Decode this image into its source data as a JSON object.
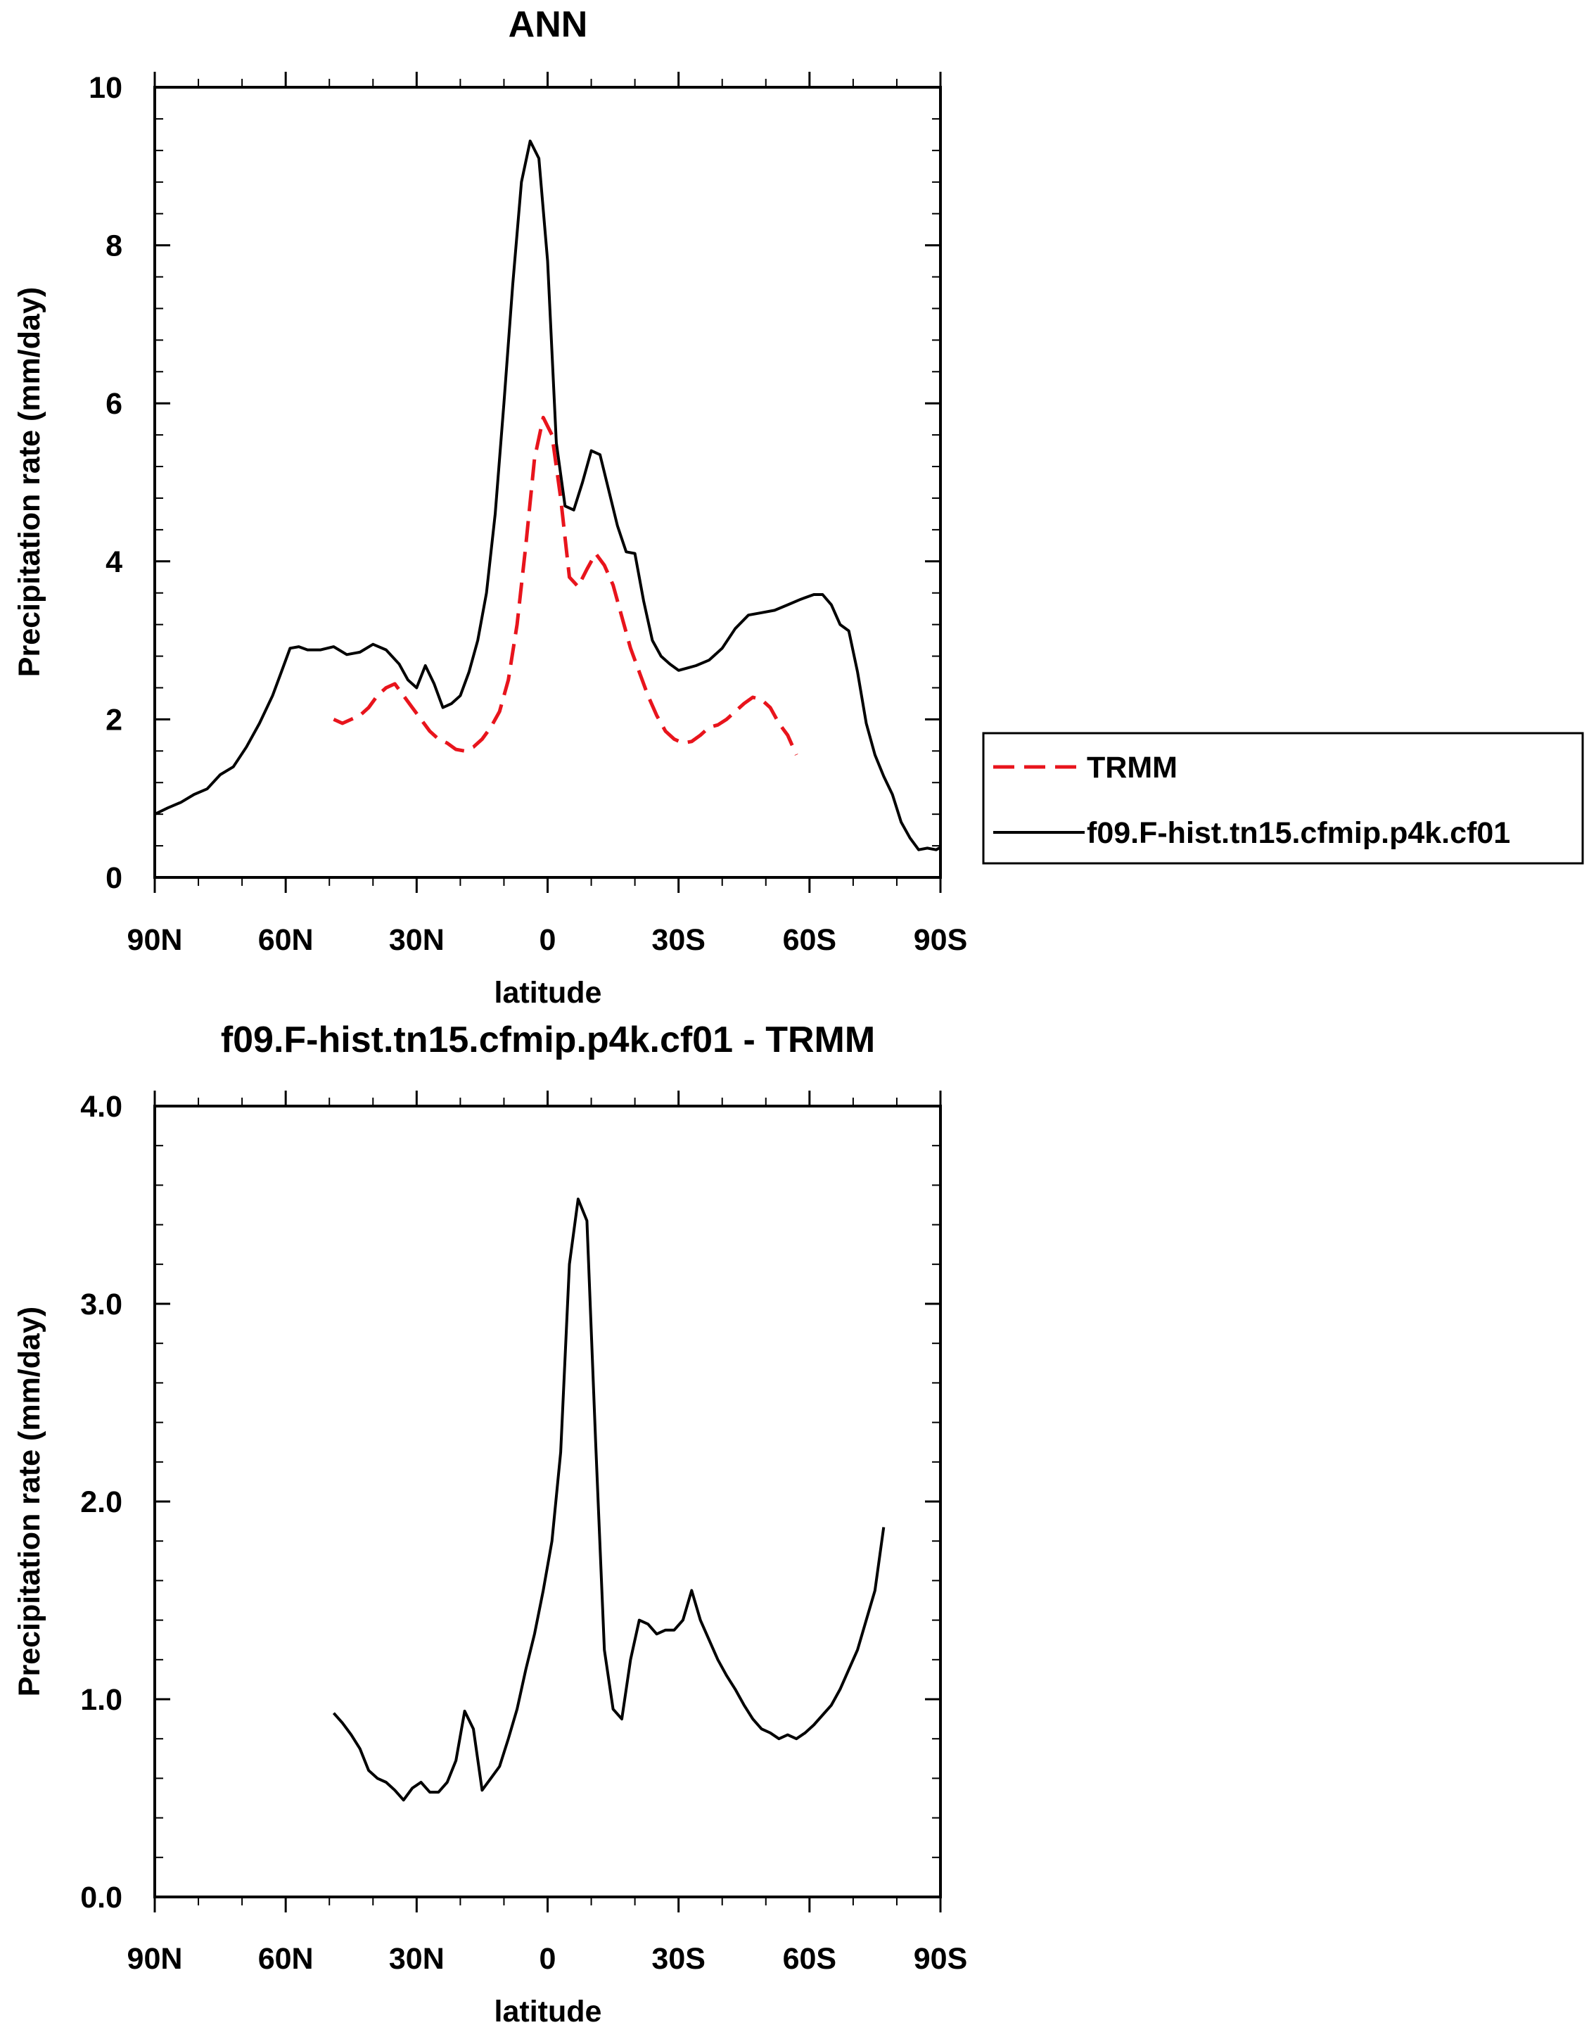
{
  "chart_data": [
    {
      "type": "line",
      "title": "ANN",
      "xlabel": "latitude",
      "ylabel": "Precipitation rate (mm/day)",
      "xlim": [
        90,
        -90
      ],
      "ylim": [
        0,
        10
      ],
      "x_ticks": [
        90,
        60,
        30,
        0,
        -30,
        -60,
        -90
      ],
      "x_tick_labels": [
        "90N",
        "60N",
        "30N",
        "0",
        "30S",
        "60S",
        "90S"
      ],
      "y_ticks": [
        0,
        2,
        4,
        6,
        8,
        10
      ],
      "y_tick_labels": [
        "0",
        "2",
        "4",
        "6",
        "8",
        "10"
      ],
      "legend_placement": "right",
      "series": [
        {
          "name": "TRMM",
          "color": "#e8141c",
          "dash": "dashed",
          "points": [
            [
              49,
              2.0
            ],
            [
              47,
              1.95
            ],
            [
              45,
              2.0
            ],
            [
              43,
              2.05
            ],
            [
              41,
              2.15
            ],
            [
              39,
              2.3
            ],
            [
              37,
              2.4
            ],
            [
              35,
              2.45
            ],
            [
              33,
              2.3
            ],
            [
              31,
              2.15
            ],
            [
              29,
              2.0
            ],
            [
              27,
              1.85
            ],
            [
              25,
              1.75
            ],
            [
              23,
              1.7
            ],
            [
              21,
              1.62
            ],
            [
              19,
              1.6
            ],
            [
              17,
              1.65
            ],
            [
              15,
              1.75
            ],
            [
              13,
              1.9
            ],
            [
              11,
              2.1
            ],
            [
              9,
              2.5
            ],
            [
              7,
              3.2
            ],
            [
              5,
              4.2
            ],
            [
              3,
              5.3
            ],
            [
              1,
              5.82
            ],
            [
              -1,
              5.6
            ],
            [
              -3,
              4.8
            ],
            [
              -5,
              3.8
            ],
            [
              -7,
              3.68
            ],
            [
              -9,
              3.9
            ],
            [
              -11,
              4.1
            ],
            [
              -13,
              3.95
            ],
            [
              -15,
              3.7
            ],
            [
              -17,
              3.3
            ],
            [
              -19,
              2.9
            ],
            [
              -21,
              2.6
            ],
            [
              -23,
              2.3
            ],
            [
              -25,
              2.05
            ],
            [
              -27,
              1.85
            ],
            [
              -29,
              1.75
            ],
            [
              -31,
              1.7
            ],
            [
              -33,
              1.72
            ],
            [
              -35,
              1.8
            ],
            [
              -37,
              1.9
            ],
            [
              -39,
              1.93
            ],
            [
              -41,
              2.0
            ],
            [
              -43,
              2.1
            ],
            [
              -45,
              2.2
            ],
            [
              -47,
              2.28
            ],
            [
              -49,
              2.25
            ],
            [
              -51,
              2.15
            ],
            [
              -53,
              1.95
            ],
            [
              -55,
              1.8
            ],
            [
              -57,
              1.55
            ]
          ]
        },
        {
          "name": "f09.F-hist.tn15.cfmip.p4k.cf01",
          "color": "#000000",
          "dash": "solid",
          "points": [
            [
              90,
              0.8
            ],
            [
              87,
              0.88
            ],
            [
              84,
              0.95
            ],
            [
              81,
              1.05
            ],
            [
              78,
              1.12
            ],
            [
              75,
              1.3
            ],
            [
              72,
              1.4
            ],
            [
              69,
              1.65
            ],
            [
              66,
              1.95
            ],
            [
              63,
              2.3
            ],
            [
              61,
              2.6
            ],
            [
              59,
              2.9
            ],
            [
              57,
              2.92
            ],
            [
              55,
              2.88
            ],
            [
              52,
              2.88
            ],
            [
              49,
              2.92
            ],
            [
              46,
              2.82
            ],
            [
              43,
              2.85
            ],
            [
              40,
              2.95
            ],
            [
              37,
              2.88
            ],
            [
              34,
              2.7
            ],
            [
              32,
              2.5
            ],
            [
              30,
              2.4
            ],
            [
              28,
              2.68
            ],
            [
              26,
              2.45
            ],
            [
              24,
              2.15
            ],
            [
              22,
              2.2
            ],
            [
              20,
              2.3
            ],
            [
              18,
              2.6
            ],
            [
              16,
              3.0
            ],
            [
              14,
              3.6
            ],
            [
              12,
              4.6
            ],
            [
              10,
              6.0
            ],
            [
              8,
              7.5
            ],
            [
              6,
              8.8
            ],
            [
              4,
              9.32
            ],
            [
              2,
              9.1
            ],
            [
              0,
              7.8
            ],
            [
              -2,
              5.5
            ],
            [
              -4,
              4.7
            ],
            [
              -6,
              4.65
            ],
            [
              -8,
              5.0
            ],
            [
              -10,
              5.4
            ],
            [
              -12,
              5.35
            ],
            [
              -14,
              4.9
            ],
            [
              -16,
              4.45
            ],
            [
              -18,
              4.12
            ],
            [
              -20,
              4.1
            ],
            [
              -22,
              3.5
            ],
            [
              -24,
              3.0
            ],
            [
              -26,
              2.8
            ],
            [
              -28,
              2.7
            ],
            [
              -30,
              2.62
            ],
            [
              -32,
              2.65
            ],
            [
              -34,
              2.68
            ],
            [
              -37,
              2.75
            ],
            [
              -40,
              2.9
            ],
            [
              -43,
              3.15
            ],
            [
              -46,
              3.32
            ],
            [
              -49,
              3.35
            ],
            [
              -52,
              3.38
            ],
            [
              -55,
              3.45
            ],
            [
              -58,
              3.52
            ],
            [
              -61,
              3.58
            ],
            [
              -63,
              3.58
            ],
            [
              -65,
              3.45
            ],
            [
              -67,
              3.2
            ],
            [
              -69,
              3.12
            ],
            [
              -71,
              2.6
            ],
            [
              -73,
              1.95
            ],
            [
              -75,
              1.55
            ],
            [
              -77,
              1.28
            ],
            [
              -79,
              1.05
            ],
            [
              -81,
              0.7
            ],
            [
              -83,
              0.5
            ],
            [
              -85,
              0.35
            ],
            [
              -87,
              0.37
            ],
            [
              -89,
              0.35
            ],
            [
              -90,
              0.38
            ]
          ]
        }
      ]
    },
    {
      "type": "line",
      "title": "f09.F-hist.tn15.cfmip.p4k.cf01 - TRMM",
      "xlabel": "latitude",
      "ylabel": "Precipitation rate (mm/day)",
      "xlim": [
        90,
        -90
      ],
      "ylim": [
        0,
        4
      ],
      "x_ticks": [
        90,
        60,
        30,
        0,
        -30,
        -60,
        -90
      ],
      "x_tick_labels": [
        "90N",
        "60N",
        "30N",
        "0",
        "30S",
        "60S",
        "90S"
      ],
      "y_ticks": [
        0,
        1,
        2,
        3,
        4
      ],
      "y_tick_labels": [
        "0.0",
        "1.0",
        "2.0",
        "3.0",
        "4.0"
      ],
      "series": [
        {
          "color": "#000000",
          "dash": "solid",
          "points": [
            [
              49,
              0.93
            ],
            [
              47,
              0.88
            ],
            [
              45,
              0.82
            ],
            [
              43,
              0.75
            ],
            [
              41,
              0.64
            ],
            [
              39,
              0.6
            ],
            [
              37,
              0.58
            ],
            [
              35,
              0.54
            ],
            [
              33,
              0.49
            ],
            [
              31,
              0.55
            ],
            [
              29,
              0.58
            ],
            [
              27,
              0.53
            ],
            [
              25,
              0.53
            ],
            [
              23,
              0.58
            ],
            [
              21,
              0.69
            ],
            [
              19,
              0.94
            ],
            [
              17,
              0.85
            ],
            [
              15,
              0.54
            ],
            [
              13,
              0.6
            ],
            [
              11,
              0.66
            ],
            [
              9,
              0.8
            ],
            [
              7,
              0.95
            ],
            [
              5,
              1.15
            ],
            [
              3,
              1.33
            ],
            [
              1,
              1.55
            ],
            [
              -1,
              1.8
            ],
            [
              -3,
              2.25
            ],
            [
              -5,
              3.2
            ],
            [
              -7,
              3.53
            ],
            [
              -9,
              3.42
            ],
            [
              -11,
              2.3
            ],
            [
              -13,
              1.25
            ],
            [
              -15,
              0.95
            ],
            [
              -17,
              0.9
            ],
            [
              -19,
              1.2
            ],
            [
              -21,
              1.4
            ],
            [
              -23,
              1.38
            ],
            [
              -25,
              1.33
            ],
            [
              -27,
              1.35
            ],
            [
              -29,
              1.35
            ],
            [
              -31,
              1.4
            ],
            [
              -33,
              1.55
            ],
            [
              -35,
              1.4
            ],
            [
              -37,
              1.3
            ],
            [
              -39,
              1.2
            ],
            [
              -41,
              1.12
            ],
            [
              -43,
              1.05
            ],
            [
              -45,
              0.97
            ],
            [
              -47,
              0.9
            ],
            [
              -49,
              0.85
            ],
            [
              -51,
              0.83
            ],
            [
              -53,
              0.8
            ],
            [
              -55,
              0.82
            ],
            [
              -57,
              0.8
            ],
            [
              -59,
              0.83
            ],
            [
              -61,
              0.87
            ],
            [
              -63,
              0.92
            ],
            [
              -65,
              0.97
            ],
            [
              -67,
              1.05
            ],
            [
              -69,
              1.15
            ],
            [
              -71,
              1.25
            ],
            [
              -73,
              1.4
            ],
            [
              -75,
              1.55
            ],
            [
              -77,
              1.87
            ]
          ]
        }
      ]
    }
  ]
}
